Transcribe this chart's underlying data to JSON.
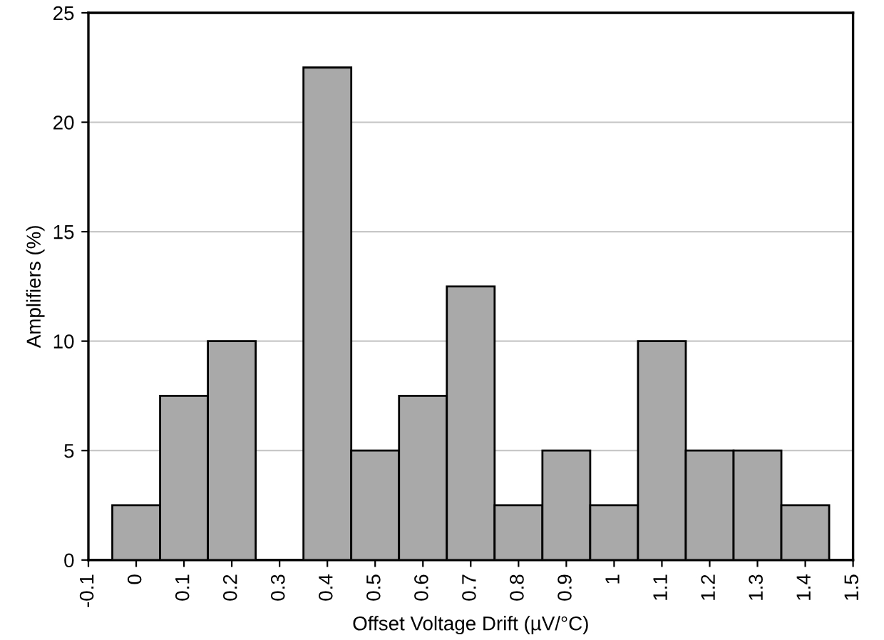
{
  "chart_data": {
    "type": "histogram",
    "xlabel": "Offset Voltage Drift (µV/°C)",
    "ylabel": "Amplifiers (%)",
    "bins": [
      -0.05,
      0.05,
      0.15,
      0.25,
      0.35,
      0.45,
      0.55,
      0.65,
      0.75,
      0.85,
      0.95,
      1.05,
      1.15,
      1.25,
      1.35,
      1.45
    ],
    "values": [
      2.5,
      7.5,
      10,
      0,
      22.5,
      5,
      7.5,
      12.5,
      2.5,
      5,
      2.5,
      10,
      5,
      5,
      2.5
    ],
    "color": "#a9a9a9",
    "xlim": [
      -0.1,
      1.5
    ],
    "xticks": [
      -0.1,
      0,
      0.1,
      0.2,
      0.3,
      0.4,
      0.5,
      0.6,
      0.7,
      0.8,
      0.9,
      1,
      1.1,
      1.2,
      1.3,
      1.4,
      1.5
    ],
    "ylim": [
      0,
      25
    ],
    "yticks": [
      0,
      5,
      10,
      15,
      20,
      25
    ],
    "grid": "y"
  }
}
